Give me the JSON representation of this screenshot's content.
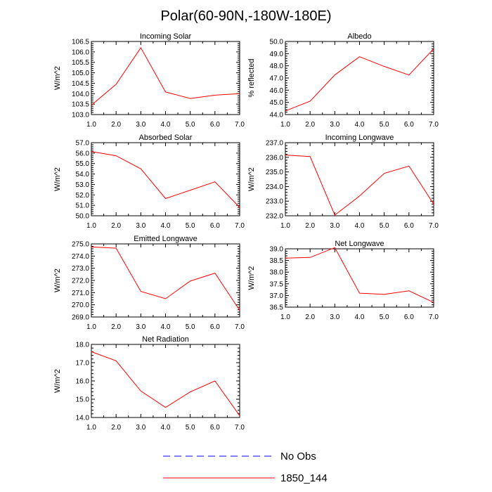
{
  "title": "Polar(60-90N,-180W-180E)",
  "legend": [
    {
      "label": "No Obs",
      "color": "#0000ff",
      "dashed": true
    },
    {
      "label": "1850_144",
      "color": "#ff0000",
      "dashed": false
    }
  ],
  "chart_data": [
    {
      "type": "line",
      "title": "Incoming Solar",
      "ylabel": "W/m^2",
      "x": [
        1,
        2,
        3,
        4,
        5,
        6,
        7
      ],
      "xticks": [
        "1.0",
        "2.0",
        "3.0",
        "4.0",
        "5.0",
        "6.0",
        "7.0"
      ],
      "ylim": [
        103.0,
        106.5
      ],
      "yticks": [
        103.0,
        103.5,
        104.0,
        104.5,
        105.0,
        105.5,
        106.0,
        106.5
      ],
      "yfmt": 1,
      "series": [
        {
          "color": "#ff0000",
          "values": [
            103.45,
            104.45,
            106.2,
            104.08,
            103.77,
            103.93,
            104.0
          ]
        }
      ]
    },
    {
      "type": "line",
      "title": "Albedo",
      "ylabel": "% reflected",
      "x": [
        1,
        2,
        3,
        4,
        5,
        6,
        7
      ],
      "xticks": [
        "1.0",
        "2.0",
        "3.0",
        "4.0",
        "5.0",
        "6.0",
        "7.0"
      ],
      "ylim": [
        44.0,
        50.0
      ],
      "yticks": [
        44.0,
        45.0,
        46.0,
        47.0,
        48.0,
        49.0,
        50.0
      ],
      "yfmt": 1,
      "series": [
        {
          "color": "#ff0000",
          "values": [
            44.3,
            45.1,
            47.25,
            48.75,
            47.95,
            47.25,
            49.4
          ]
        }
      ]
    },
    {
      "type": "line",
      "title": "Absorbed Solar",
      "ylabel": "W/m^2",
      "x": [
        1,
        2,
        3,
        4,
        5,
        6,
        7
      ],
      "xticks": [
        "1.0",
        "2.0",
        "3.0",
        "4.0",
        "5.0",
        "6.0",
        "7.0"
      ],
      "ylim": [
        50.0,
        57.0
      ],
      "yticks": [
        50.0,
        51.0,
        52.0,
        53.0,
        54.0,
        55.0,
        56.0,
        57.0
      ],
      "yfmt": 1,
      "series": [
        {
          "color": "#ff0000",
          "values": [
            56.15,
            55.75,
            54.5,
            51.65,
            52.45,
            53.25,
            50.8
          ]
        }
      ]
    },
    {
      "type": "line",
      "title": "Incoming Longwave",
      "ylabel": "W/m^2",
      "x": [
        1,
        2,
        3,
        4,
        5,
        6,
        7
      ],
      "xticks": [
        "1.0",
        "2.0",
        "3.0",
        "4.0",
        "5.0",
        "6.0",
        "7.0"
      ],
      "ylim": [
        232.0,
        237.0
      ],
      "yticks": [
        232.0,
        233.0,
        234.0,
        235.0,
        236.0,
        237.0
      ],
      "yfmt": 1,
      "series": [
        {
          "color": "#ff0000",
          "values": [
            236.15,
            236.05,
            232.05,
            233.35,
            234.9,
            235.4,
            232.8
          ]
        }
      ]
    },
    {
      "type": "line",
      "title": "Emitted Longwave",
      "ylabel": "W/m^2",
      "x": [
        1,
        2,
        3,
        4,
        5,
        6,
        7
      ],
      "xticks": [
        "1.0",
        "2.0",
        "3.0",
        "4.0",
        "5.0",
        "6.0",
        "7.0"
      ],
      "ylim": [
        269.0,
        275.0
      ],
      "yticks": [
        269.0,
        270.0,
        271.0,
        272.0,
        273.0,
        274.0,
        275.0
      ],
      "yfmt": 1,
      "series": [
        {
          "color": "#ff0000",
          "values": [
            274.75,
            274.65,
            271.1,
            270.5,
            271.95,
            272.6,
            269.55
          ]
        }
      ]
    },
    {
      "type": "line",
      "title": "Net Longwave",
      "ylabel": "W/m^2",
      "x": [
        1,
        2,
        3,
        4,
        5,
        6,
        7
      ],
      "xticks": [
        "1.0",
        "2.0",
        "3.0",
        "4.0",
        "5.0",
        "6.0",
        "7.0"
      ],
      "ylim": [
        36.5,
        39.0
      ],
      "yticks": [
        36.5,
        37.0,
        37.5,
        38.0,
        38.5,
        39.0
      ],
      "yfmt": 1,
      "series": [
        {
          "color": "#ff0000",
          "values": [
            38.6,
            38.63,
            39.05,
            37.1,
            37.05,
            37.2,
            36.7
          ]
        }
      ]
    },
    {
      "type": "line",
      "title": "Net Radiation",
      "ylabel": "W/m^2",
      "x": [
        1,
        2,
        3,
        4,
        5,
        6,
        7
      ],
      "xticks": [
        "1.0",
        "2.0",
        "3.0",
        "4.0",
        "5.0",
        "6.0",
        "7.0"
      ],
      "ylim": [
        14.0,
        18.0
      ],
      "yticks": [
        14.0,
        15.0,
        16.0,
        17.0,
        18.0
      ],
      "yfmt": 1,
      "series": [
        {
          "color": "#ff0000",
          "values": [
            17.6,
            17.1,
            15.45,
            14.55,
            15.4,
            16.0,
            14.1
          ]
        }
      ]
    }
  ]
}
